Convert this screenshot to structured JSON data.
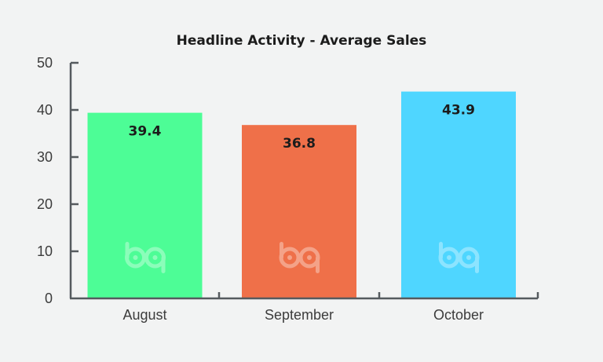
{
  "chart_data": {
    "type": "bar",
    "title": "Headline Activity - Average Sales",
    "categories": [
      "August",
      "September",
      "October"
    ],
    "values": [
      39.4,
      36.8,
      43.9
    ],
    "value_labels": [
      "39.4",
      "36.8",
      "43.9"
    ],
    "colors": [
      "#4dfd96",
      "#ef7049",
      "#4fd6ff"
    ],
    "ylim": [
      0,
      50
    ],
    "yticks": [
      0,
      10,
      20,
      30,
      40,
      50
    ],
    "grid": false,
    "legend": "none",
    "watermark": "bp"
  },
  "colors": {
    "background": "#f2f3f3",
    "axis": "#555a5e"
  }
}
